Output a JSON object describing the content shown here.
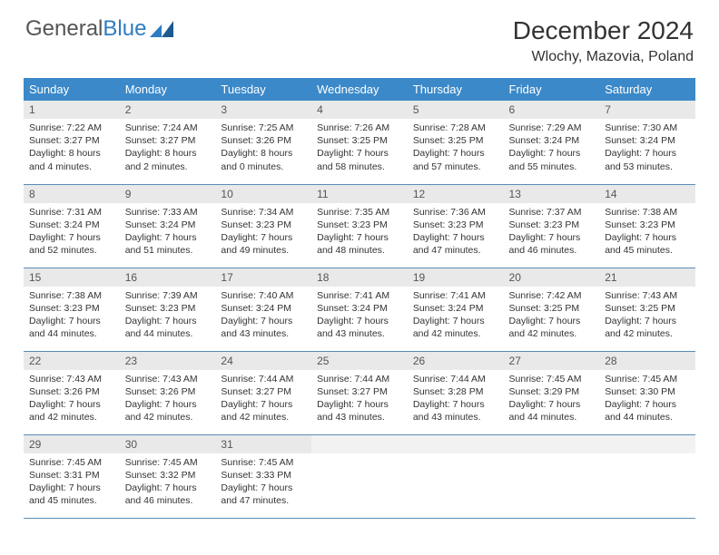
{
  "logo": {
    "text1": "General",
    "text2": "Blue"
  },
  "title": "December 2024",
  "location": "Wlochy, Mazovia, Poland",
  "colors": {
    "header_bg": "#3b89c9",
    "header_fg": "#ffffff",
    "daynum_bg": "#e9e9e9",
    "border": "#5a8cb8",
    "text": "#333333",
    "logo_gray": "#555555",
    "logo_blue": "#2e7cc1",
    "page_bg": "#ffffff"
  },
  "dayNames": [
    "Sunday",
    "Monday",
    "Tuesday",
    "Wednesday",
    "Thursday",
    "Friday",
    "Saturday"
  ],
  "weeks": [
    [
      {
        "n": "1",
        "sr": "7:22 AM",
        "ss": "3:27 PM",
        "dl": "8 hours and 4 minutes."
      },
      {
        "n": "2",
        "sr": "7:24 AM",
        "ss": "3:27 PM",
        "dl": "8 hours and 2 minutes."
      },
      {
        "n": "3",
        "sr": "7:25 AM",
        "ss": "3:26 PM",
        "dl": "8 hours and 0 minutes."
      },
      {
        "n": "4",
        "sr": "7:26 AM",
        "ss": "3:25 PM",
        "dl": "7 hours and 58 minutes."
      },
      {
        "n": "5",
        "sr": "7:28 AM",
        "ss": "3:25 PM",
        "dl": "7 hours and 57 minutes."
      },
      {
        "n": "6",
        "sr": "7:29 AM",
        "ss": "3:24 PM",
        "dl": "7 hours and 55 minutes."
      },
      {
        "n": "7",
        "sr": "7:30 AM",
        "ss": "3:24 PM",
        "dl": "7 hours and 53 minutes."
      }
    ],
    [
      {
        "n": "8",
        "sr": "7:31 AM",
        "ss": "3:24 PM",
        "dl": "7 hours and 52 minutes."
      },
      {
        "n": "9",
        "sr": "7:33 AM",
        "ss": "3:24 PM",
        "dl": "7 hours and 51 minutes."
      },
      {
        "n": "10",
        "sr": "7:34 AM",
        "ss": "3:23 PM",
        "dl": "7 hours and 49 minutes."
      },
      {
        "n": "11",
        "sr": "7:35 AM",
        "ss": "3:23 PM",
        "dl": "7 hours and 48 minutes."
      },
      {
        "n": "12",
        "sr": "7:36 AM",
        "ss": "3:23 PM",
        "dl": "7 hours and 47 minutes."
      },
      {
        "n": "13",
        "sr": "7:37 AM",
        "ss": "3:23 PM",
        "dl": "7 hours and 46 minutes."
      },
      {
        "n": "14",
        "sr": "7:38 AM",
        "ss": "3:23 PM",
        "dl": "7 hours and 45 minutes."
      }
    ],
    [
      {
        "n": "15",
        "sr": "7:38 AM",
        "ss": "3:23 PM",
        "dl": "7 hours and 44 minutes."
      },
      {
        "n": "16",
        "sr": "7:39 AM",
        "ss": "3:23 PM",
        "dl": "7 hours and 44 minutes."
      },
      {
        "n": "17",
        "sr": "7:40 AM",
        "ss": "3:24 PM",
        "dl": "7 hours and 43 minutes."
      },
      {
        "n": "18",
        "sr": "7:41 AM",
        "ss": "3:24 PM",
        "dl": "7 hours and 43 minutes."
      },
      {
        "n": "19",
        "sr": "7:41 AM",
        "ss": "3:24 PM",
        "dl": "7 hours and 42 minutes."
      },
      {
        "n": "20",
        "sr": "7:42 AM",
        "ss": "3:25 PM",
        "dl": "7 hours and 42 minutes."
      },
      {
        "n": "21",
        "sr": "7:43 AM",
        "ss": "3:25 PM",
        "dl": "7 hours and 42 minutes."
      }
    ],
    [
      {
        "n": "22",
        "sr": "7:43 AM",
        "ss": "3:26 PM",
        "dl": "7 hours and 42 minutes."
      },
      {
        "n": "23",
        "sr": "7:43 AM",
        "ss": "3:26 PM",
        "dl": "7 hours and 42 minutes."
      },
      {
        "n": "24",
        "sr": "7:44 AM",
        "ss": "3:27 PM",
        "dl": "7 hours and 42 minutes."
      },
      {
        "n": "25",
        "sr": "7:44 AM",
        "ss": "3:27 PM",
        "dl": "7 hours and 43 minutes."
      },
      {
        "n": "26",
        "sr": "7:44 AM",
        "ss": "3:28 PM",
        "dl": "7 hours and 43 minutes."
      },
      {
        "n": "27",
        "sr": "7:45 AM",
        "ss": "3:29 PM",
        "dl": "7 hours and 44 minutes."
      },
      {
        "n": "28",
        "sr": "7:45 AM",
        "ss": "3:30 PM",
        "dl": "7 hours and 44 minutes."
      }
    ],
    [
      {
        "n": "29",
        "sr": "7:45 AM",
        "ss": "3:31 PM",
        "dl": "7 hours and 45 minutes."
      },
      {
        "n": "30",
        "sr": "7:45 AM",
        "ss": "3:32 PM",
        "dl": "7 hours and 46 minutes."
      },
      {
        "n": "31",
        "sr": "7:45 AM",
        "ss": "3:33 PM",
        "dl": "7 hours and 47 minutes."
      },
      null,
      null,
      null,
      null
    ]
  ],
  "labels": {
    "sunrise": "Sunrise:",
    "sunset": "Sunset:",
    "daylight": "Daylight:"
  }
}
